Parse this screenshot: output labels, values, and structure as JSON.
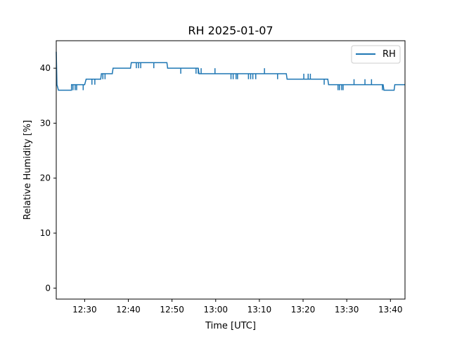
{
  "chart_data": {
    "type": "line",
    "title": "RH 2025-01-07",
    "xlabel": "Time [UTC]",
    "ylabel": "Relative Humidity [%]",
    "x_unit": "time (UTC, HH:MM)",
    "xlim": [
      "12:23:30",
      "13:43:20"
    ],
    "ylim": [
      -2,
      45
    ],
    "x_ticks": [
      "12:30",
      "12:40",
      "12:50",
      "13:00",
      "13:10",
      "13:20",
      "13:30",
      "13:40"
    ],
    "y_ticks": [
      0,
      10,
      20,
      30,
      40
    ],
    "legend": {
      "position": "top-right"
    },
    "grid": false,
    "series": [
      {
        "name": "RH",
        "color": "#1f77b4",
        "points": [
          [
            "12:23:30",
            43
          ],
          [
            "12:23:40",
            37
          ],
          [
            "12:24:00",
            36
          ],
          [
            "12:27:00",
            36
          ],
          [
            "12:27:00",
            37
          ],
          [
            "12:30:00",
            37
          ],
          [
            "12:30:20",
            38
          ],
          [
            "12:33:40",
            38
          ],
          [
            "12:33:50",
            39
          ],
          [
            "12:36:20",
            39
          ],
          [
            "12:36:30",
            40
          ],
          [
            "12:40:30",
            40
          ],
          [
            "12:40:40",
            41
          ],
          [
            "12:48:50",
            41
          ],
          [
            "12:49:00",
            40
          ],
          [
            "12:56:00",
            40
          ],
          [
            "12:56:10",
            39
          ],
          [
            "13:09:50",
            39
          ],
          [
            "13:10:00",
            39
          ],
          [
            "13:16:10",
            39
          ],
          [
            "13:16:20",
            38
          ],
          [
            "13:25:40",
            38
          ],
          [
            "13:25:50",
            37
          ],
          [
            "13:38:20",
            37
          ],
          [
            "13:38:30",
            36
          ],
          [
            "13:40:50",
            36
          ],
          [
            "13:41:00",
            37
          ],
          [
            "13:43:20",
            37
          ]
        ],
        "spikes": [
          [
            "12:26:50",
            36
          ],
          [
            "12:27:20",
            36
          ],
          [
            "12:27:50",
            36
          ],
          [
            "12:28:10",
            36
          ],
          [
            "12:29:40",
            36
          ],
          [
            "12:31:40",
            37
          ],
          [
            "12:32:20",
            37
          ],
          [
            "12:34:10",
            38
          ],
          [
            "12:34:40",
            38
          ],
          [
            "12:41:50",
            40
          ],
          [
            "12:42:20",
            40
          ],
          [
            "12:42:50",
            40
          ],
          [
            "12:45:50",
            40
          ],
          [
            "12:52:00",
            39
          ],
          [
            "12:55:30",
            39
          ],
          [
            "12:56:00",
            39
          ],
          [
            "12:56:30",
            39
          ],
          [
            "12:57:00",
            39
          ],
          [
            "12:59:50",
            40
          ],
          [
            "12:56:40",
            40
          ],
          [
            "13:03:30",
            38
          ],
          [
            "13:04:00",
            38
          ],
          [
            "13:04:40",
            38
          ],
          [
            "13:05:00",
            38
          ],
          [
            "13:07:30",
            38
          ],
          [
            "13:08:00",
            38
          ],
          [
            "13:08:30",
            38
          ],
          [
            "13:09:10",
            38
          ],
          [
            "13:11:10",
            40
          ],
          [
            "13:14:10",
            38
          ],
          [
            "13:20:10",
            39
          ],
          [
            "13:21:10",
            39
          ],
          [
            "13:21:40",
            39
          ],
          [
            "13:24:50",
            37
          ],
          [
            "13:26:20",
            37
          ],
          [
            "13:28:00",
            36
          ],
          [
            "13:28:20",
            36
          ],
          [
            "13:28:50",
            36
          ],
          [
            "13:29:10",
            36
          ],
          [
            "13:31:40",
            38
          ],
          [
            "13:34:10",
            38
          ],
          [
            "13:35:40",
            38
          ],
          [
            "13:38:10",
            36
          ],
          [
            "13:38:40",
            36
          ]
        ]
      }
    ]
  }
}
